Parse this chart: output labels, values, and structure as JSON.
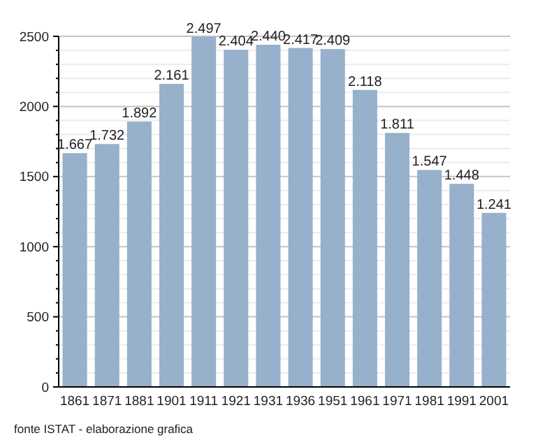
{
  "chart_data": {
    "type": "bar",
    "categories": [
      "1861",
      "1871",
      "1881",
      "1901",
      "1911",
      "1921",
      "1931",
      "1936",
      "1951",
      "1961",
      "1971",
      "1981",
      "1991",
      "2001"
    ],
    "values": [
      1667,
      1732,
      1892,
      2161,
      2497,
      2404,
      2440,
      2417,
      2409,
      2118,
      1811,
      1547,
      1448,
      1241
    ],
    "value_labels": [
      "1.667",
      "1.732",
      "1.892",
      "2.161",
      "2.497",
      "2.404",
      "2.440",
      "2.417",
      "2.409",
      "2.118",
      "1.811",
      "1.547",
      "1.448",
      "1.241"
    ],
    "color": "#97b0cb",
    "ylim": [
      0,
      2500
    ],
    "yticks": [
      0,
      {
        "value": 100,
        "label": null
      },
      {
        "value": 200,
        "label": null
      },
      {
        "value": 300,
        "label": null
      },
      {
        "value": 400,
        "label": null
      },
      500,
      {
        "value": 600,
        "label": null
      },
      {
        "value": 700,
        "label": null
      },
      {
        "value": 800,
        "label": null
      },
      {
        "value": 900,
        "label": null
      },
      1000,
      {
        "value": 1100,
        "label": null
      },
      {
        "value": 1200,
        "label": null
      },
      {
        "value": 1300,
        "label": null
      },
      {
        "value": 1400,
        "label": null
      },
      1500,
      {
        "value": 1600,
        "label": null
      },
      {
        "value": 1700,
        "label": null
      },
      {
        "value": 1800,
        "label": null
      },
      {
        "value": 1900,
        "label": null
      },
      2000,
      {
        "value": 2100,
        "label": null
      },
      {
        "value": 2200,
        "label": null
      },
      {
        "value": 2300,
        "label": null
      },
      {
        "value": 2400,
        "label": null
      },
      2500
    ],
    "grid": "y",
    "annotations": [
      "fonte ISTAT - elaborazione grafica"
    ]
  }
}
